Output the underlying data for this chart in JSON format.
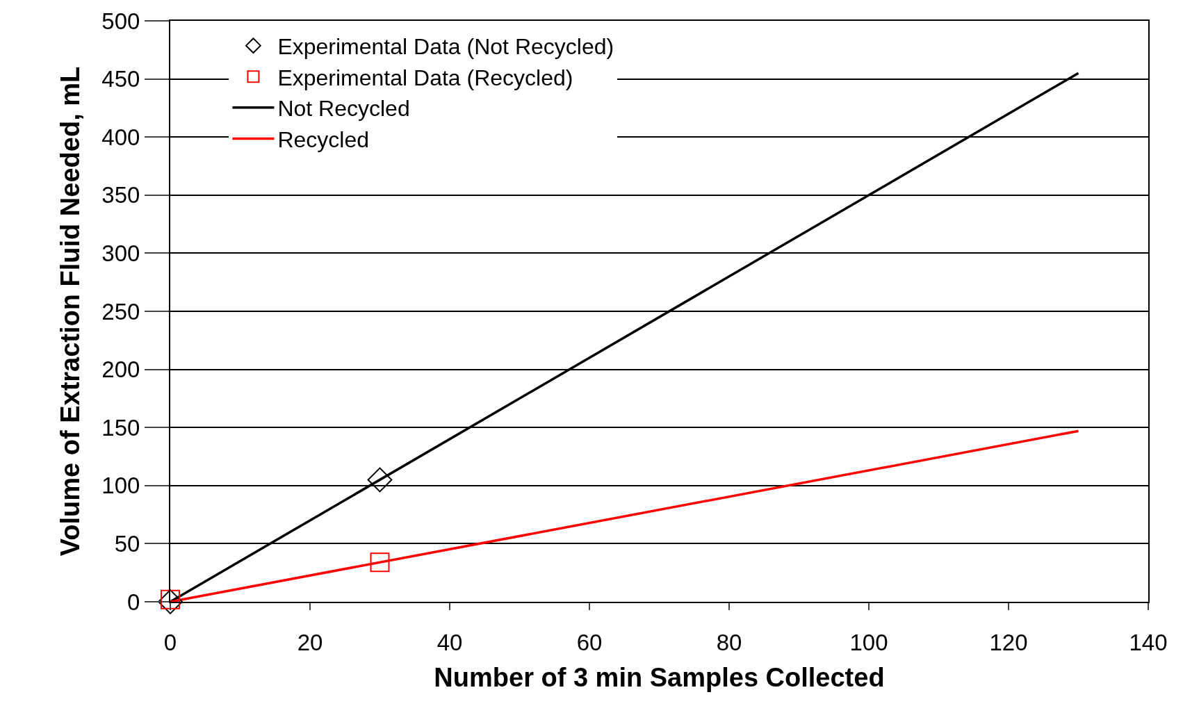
{
  "chart_data": {
    "type": "scatter",
    "xlabel": "Number of 3 min Samples Collected",
    "ylabel": "Volume of Extraction Fluid Needed, mL",
    "xlim": [
      0,
      140
    ],
    "xticks": [
      0,
      20,
      40,
      60,
      80,
      100,
      120,
      140
    ],
    "ylim": [
      0,
      500
    ],
    "yticks": [
      0,
      50,
      100,
      150,
      200,
      250,
      300,
      350,
      400,
      450,
      500
    ],
    "grid": "y",
    "legend": "top left",
    "series": [
      {
        "name": "Experimental Data (Not Recycled)",
        "marker": "diamond",
        "color": "#000000",
        "x": [
          0,
          30
        ],
        "values": [
          0,
          105
        ]
      },
      {
        "name": "Experimental Data (Recycled)",
        "marker": "square",
        "color": "#ff0000",
        "x": [
          0,
          30
        ],
        "values": [
          2,
          34
        ]
      },
      {
        "name": "Not Recycled",
        "type": "line",
        "marker": "none",
        "line_style": "solid",
        "color": "#000000",
        "x": [
          0,
          130
        ],
        "values": [
          0,
          455
        ]
      },
      {
        "name": "Recycled",
        "type": "line",
        "marker": "none",
        "line_style": "solid",
        "color": "#ff0000",
        "x": [
          0,
          130
        ],
        "values": [
          0,
          147
        ]
      }
    ]
  }
}
